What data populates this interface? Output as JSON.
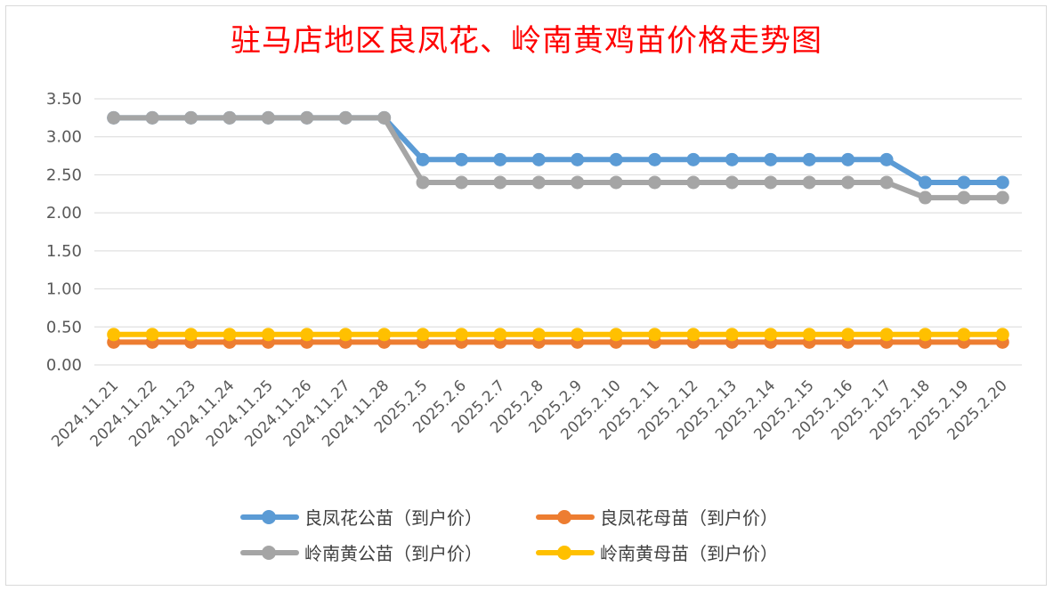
{
  "chart_data": {
    "type": "line",
    "title": "驻马店地区良凤花、岭南黄鸡苗价格走势图",
    "xlabel": "",
    "ylabel": "",
    "ylim": [
      0,
      3.5
    ],
    "yticks": [
      "0.00",
      "0.50",
      "1.00",
      "1.50",
      "2.00",
      "2.50",
      "3.00",
      "3.50"
    ],
    "grid": true,
    "legend_position": "bottom",
    "categories": [
      "2024.11.21",
      "2024.11.22",
      "2024.11.23",
      "2024.11.24",
      "2024.11.25",
      "2024.11.26",
      "2024.11.27",
      "2024.11.28",
      "2025.2.5",
      "2025.2.6",
      "2025.2.7",
      "2025.2.8",
      "2025.2.9",
      "2025.2.10",
      "2025.2.11",
      "2025.2.12",
      "2025.2.13",
      "2025.2.14",
      "2025.2.15",
      "2025.2.16",
      "2025.2.17",
      "2025.2.18",
      "2025.2.19",
      "2025.2.20"
    ],
    "series": [
      {
        "name": "良凤花公苗（到户价）",
        "color": "#5b9bd5",
        "values": [
          3.25,
          3.25,
          3.25,
          3.25,
          3.25,
          3.25,
          3.25,
          3.25,
          2.7,
          2.7,
          2.7,
          2.7,
          2.7,
          2.7,
          2.7,
          2.7,
          2.7,
          2.7,
          2.7,
          2.7,
          2.7,
          2.4,
          2.4,
          2.4
        ]
      },
      {
        "name": "良凤花母苗（到户价）",
        "color": "#ed7d31",
        "values": [
          0.3,
          0.3,
          0.3,
          0.3,
          0.3,
          0.3,
          0.3,
          0.3,
          0.3,
          0.3,
          0.3,
          0.3,
          0.3,
          0.3,
          0.3,
          0.3,
          0.3,
          0.3,
          0.3,
          0.3,
          0.3,
          0.3,
          0.3,
          0.3
        ]
      },
      {
        "name": "岭南黄公苗（到户价）",
        "color": "#a5a5a5",
        "values": [
          3.25,
          3.25,
          3.25,
          3.25,
          3.25,
          3.25,
          3.25,
          3.25,
          2.4,
          2.4,
          2.4,
          2.4,
          2.4,
          2.4,
          2.4,
          2.4,
          2.4,
          2.4,
          2.4,
          2.4,
          2.4,
          2.2,
          2.2,
          2.2
        ]
      },
      {
        "name": "岭南黄母苗（到户价）",
        "color": "#ffc000",
        "values": [
          0.4,
          0.4,
          0.4,
          0.4,
          0.4,
          0.4,
          0.4,
          0.4,
          0.4,
          0.4,
          0.4,
          0.4,
          0.4,
          0.4,
          0.4,
          0.4,
          0.4,
          0.4,
          0.4,
          0.4,
          0.4,
          0.4,
          0.4,
          0.4
        ]
      }
    ]
  }
}
